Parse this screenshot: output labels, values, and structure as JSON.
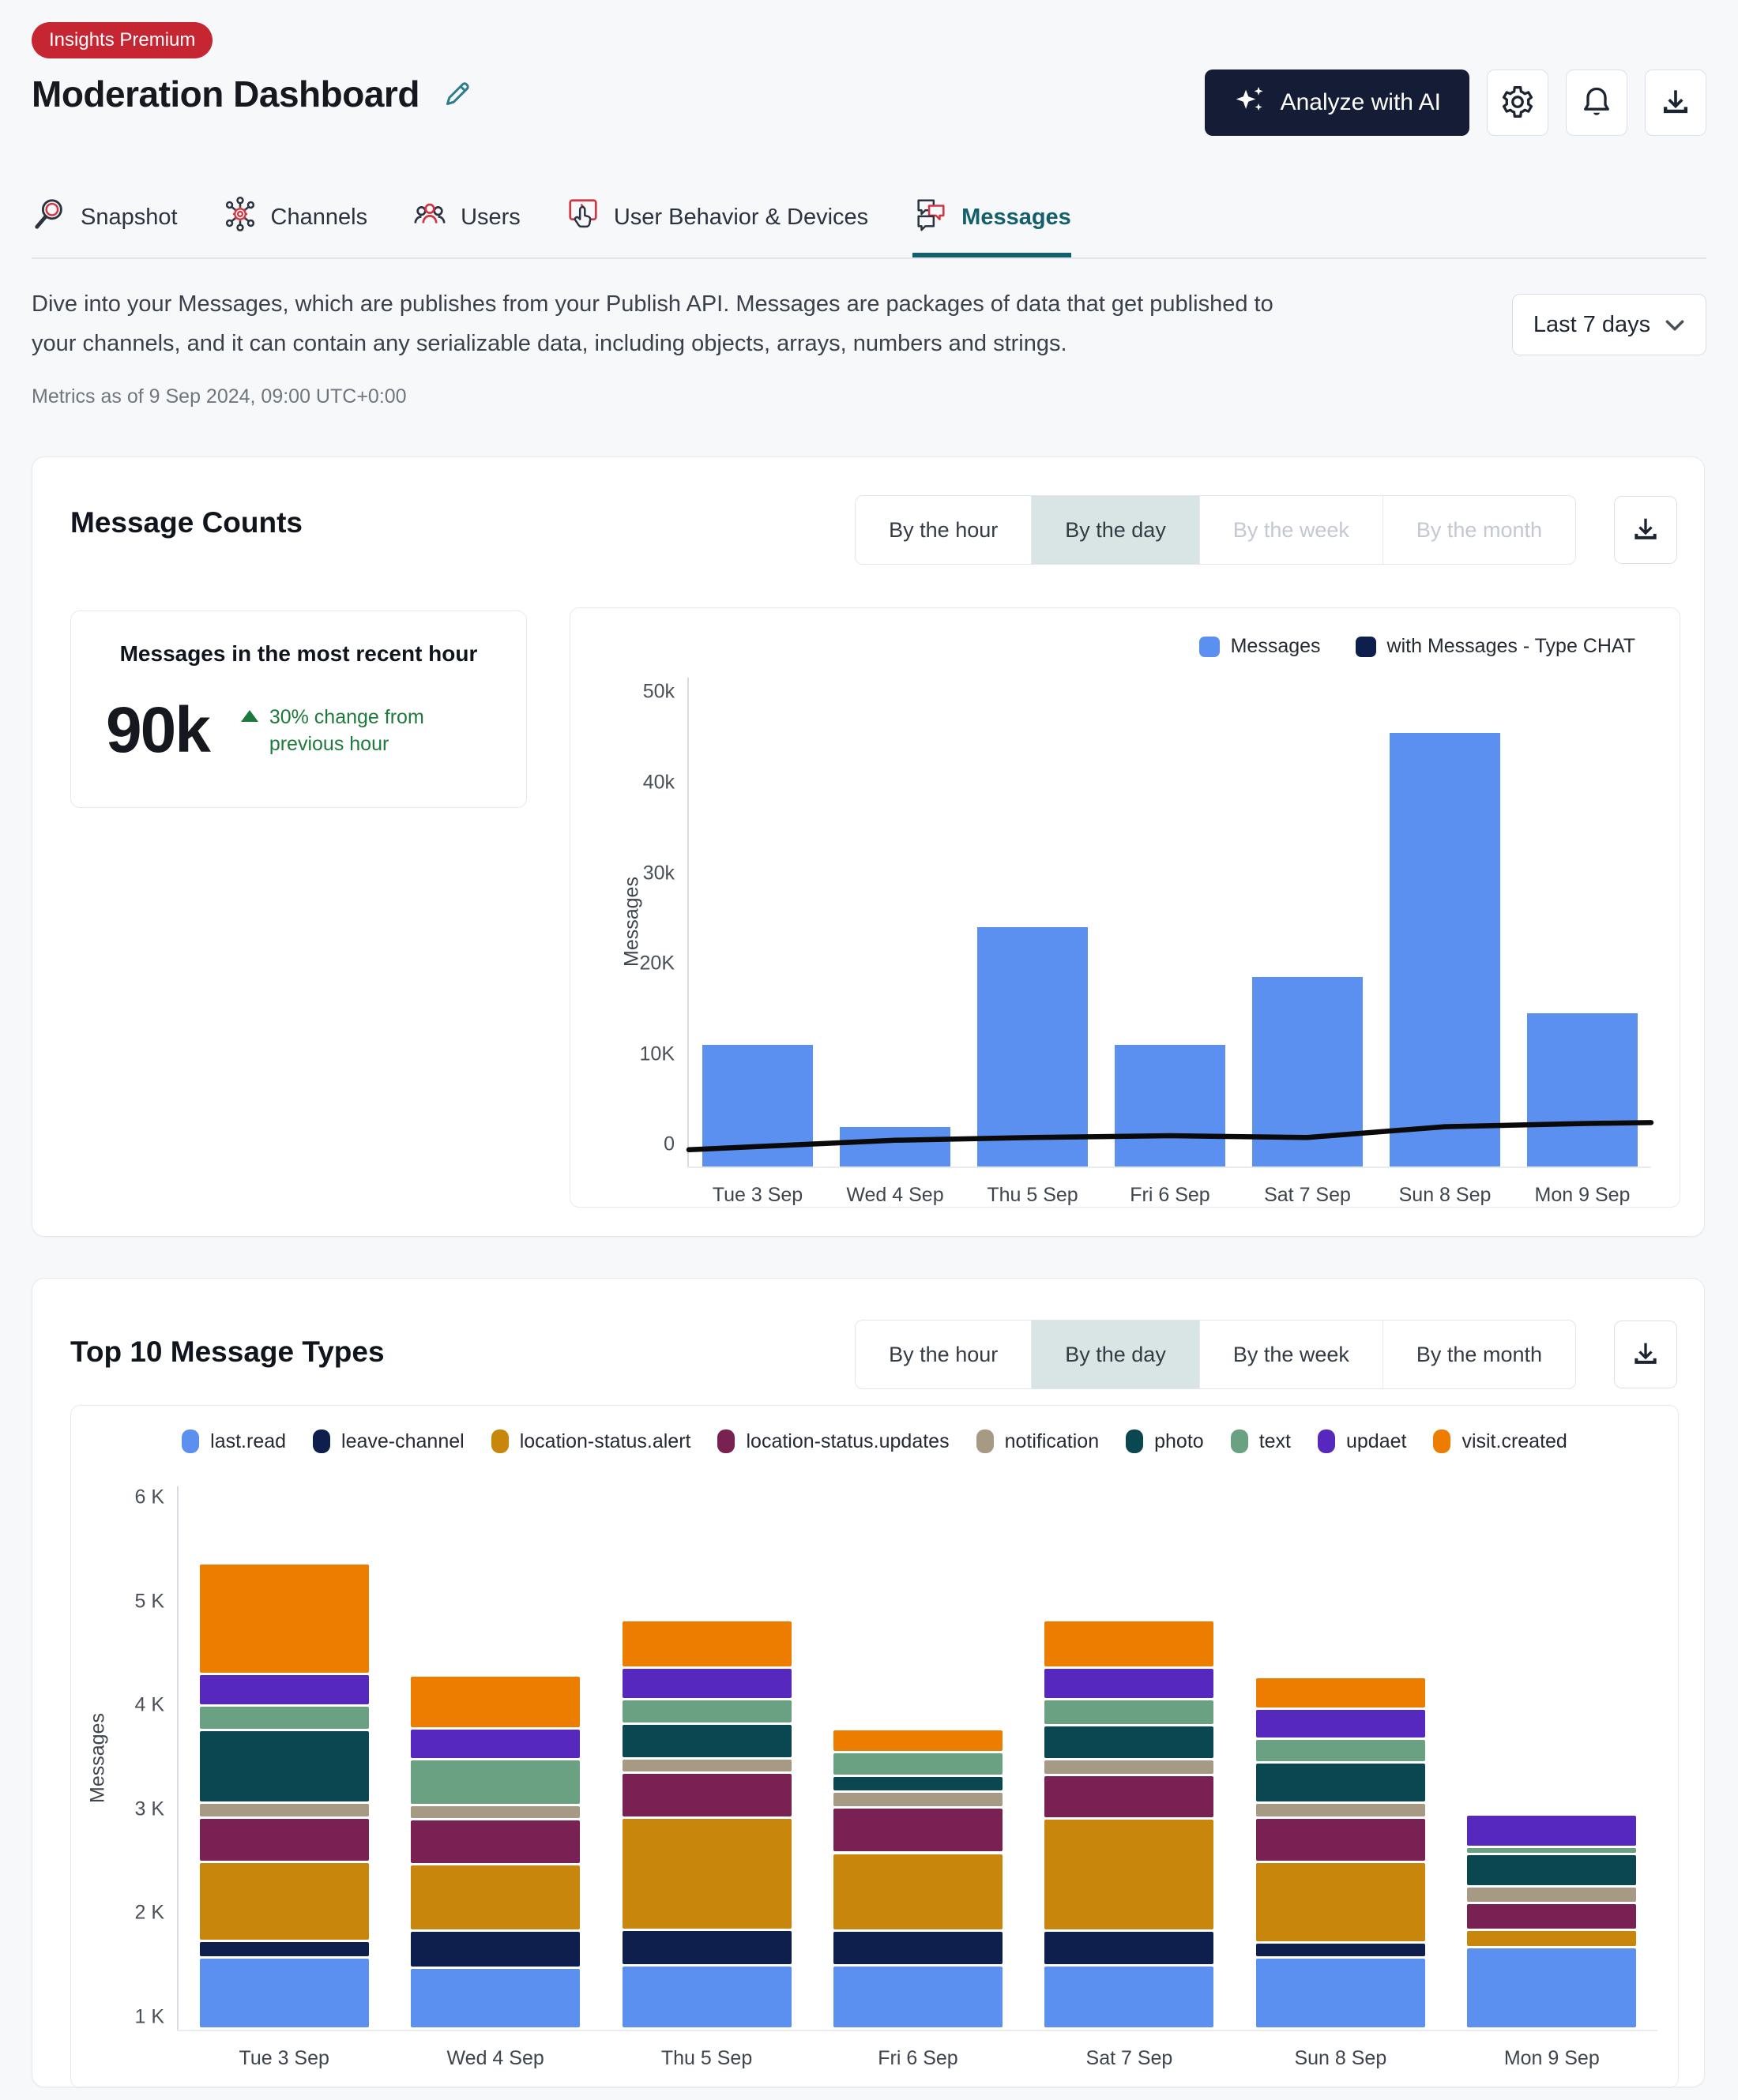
{
  "page": {
    "badge": "Insights Premium",
    "title": "Moderation Dashboard"
  },
  "actions": {
    "analyze_label": "Analyze with AI"
  },
  "tabs": [
    {
      "label": "Snapshot",
      "icon": "search-icon",
      "active": false
    },
    {
      "label": "Channels",
      "icon": "hub-icon",
      "active": false
    },
    {
      "label": "Users",
      "icon": "users-icon",
      "active": false
    },
    {
      "label": "User Behavior & Devices",
      "icon": "behavior-icon",
      "active": false
    },
    {
      "label": "Messages",
      "icon": "messages-icon",
      "active": true
    }
  ],
  "intro": {
    "description": "Dive into your Messages, which are publishes from your Publish API. Messages are packages of data that get published to your channels, and it can contain any serializable data, including objects, arrays, numbers and strings.",
    "range_label": "Last 7 days",
    "metrics_asof": "Metrics as of 9 Sep 2024, 09:00 UTC+0:00"
  },
  "message_counts": {
    "title": "Message Counts",
    "granularity": [
      {
        "label": "By the hour",
        "state": "normal"
      },
      {
        "label": "By the day",
        "state": "selected"
      },
      {
        "label": "By the week",
        "state": "disabled"
      },
      {
        "label": "By the month",
        "state": "disabled"
      }
    ],
    "kpi": {
      "label": "Messages in the most recent hour",
      "value": "90k",
      "delta": "30% change from previous hour"
    },
    "chart_data": {
      "type": "bar+line",
      "unit": "thousands of messages",
      "categories": [
        "Tue 3 Sep",
        "Wed 4 Sep",
        "Thu 5 Sep",
        "Fri 6 Sep",
        "Sat 7 Sep",
        "Sun 8 Sep",
        "Mon 9 Sep"
      ],
      "series": [
        {
          "name": "Messages",
          "kind": "bar",
          "color": "#5B8FF0",
          "values_k": [
            11,
            2,
            24,
            11,
            18.5,
            45.5,
            14.5
          ]
        },
        {
          "name": "with Messages - Type CHAT",
          "kind": "line",
          "color": "#0E1F4E",
          "stroke": "#0A0A0A",
          "values_k": [
            -0.2,
            0.5,
            0.8,
            1.0,
            0.8,
            2.0,
            2.35
          ],
          "edge_start_k": -0.55,
          "edge_end_k": 2.45
        }
      ],
      "ylabel": "Messages",
      "yticks": [
        {
          "label": "0",
          "v": 0
        },
        {
          "label": "10K",
          "v": 10
        },
        {
          "label": "20K",
          "v": 20
        },
        {
          "label": "30k",
          "v": 30
        },
        {
          "label": "40k",
          "v": 40
        },
        {
          "label": "50k",
          "v": 50
        }
      ],
      "ylim_k": [
        -2.4,
        51.6
      ],
      "legend_position": "top-right",
      "grid": false
    }
  },
  "top_types": {
    "title": "Top 10 Message Types",
    "granularity": [
      {
        "label": "By the hour",
        "state": "normal"
      },
      {
        "label": "By the day",
        "state": "selected"
      },
      {
        "label": "By the week",
        "state": "normal"
      },
      {
        "label": "By the month",
        "state": "normal"
      }
    ],
    "chart_data": {
      "type": "stacked-bar",
      "unit": "thousands of messages",
      "categories": [
        "Tue 3 Sep",
        "Wed 4 Sep",
        "Thu 5 Sep",
        "Fri 6 Sep",
        "Sat 7 Sep",
        "Sun 8 Sep",
        "Mon 9 Sep"
      ],
      "ylabel": "Messages",
      "yticks": [
        {
          "label": "1 K",
          "v": 1
        },
        {
          "label": "2 K",
          "v": 2
        },
        {
          "label": "3 K",
          "v": 3
        },
        {
          "label": "4 K",
          "v": 4
        },
        {
          "label": "5 K",
          "v": 5
        },
        {
          "label": "6 K",
          "v": 6
        }
      ],
      "ylim_k": [
        0.878,
        6.11
      ],
      "legend_position": "top-center",
      "grid": false,
      "series": [
        {
          "name": "last.read",
          "color": "#5B8FF0"
        },
        {
          "name": "leave-channel",
          "color": "#0E1F4E"
        },
        {
          "name": "location-status.alert",
          "color": "#C8860D"
        },
        {
          "name": "location-status.updates",
          "color": "#7A2153"
        },
        {
          "name": "notification",
          "color": "#A79A84"
        },
        {
          "name": "photo",
          "color": "#0B4750"
        },
        {
          "name": "text",
          "color": "#6BA183"
        },
        {
          "name": "updaet",
          "color": "#5628BE"
        },
        {
          "name": "visit.created",
          "color": "#EC7D00"
        }
      ],
      "stacks": [
        {
          "category": "Tue 3 Sep",
          "segments": [
            [
              "last.read",
              0.88,
              1.56
            ],
            [
              "leave-channel",
              1.56,
              1.72
            ],
            [
              "location-status.alert",
              1.72,
              2.48
            ],
            [
              "location-status.updates",
              2.48,
              2.91
            ],
            [
              "notification",
              2.91,
              3.05
            ],
            [
              "photo",
              3.05,
              3.75
            ],
            [
              "text",
              3.75,
              3.99
            ],
            [
              "updaet",
              3.99,
              4.29
            ],
            [
              "visit.created",
              4.29,
              5.36
            ]
          ]
        },
        {
          "category": "Wed 4 Sep",
          "segments": [
            [
              "last.read",
              0.88,
              1.46
            ],
            [
              "leave-channel",
              1.46,
              1.82
            ],
            [
              "location-status.alert",
              1.82,
              2.46
            ],
            [
              "location-status.updates",
              2.46,
              2.89
            ],
            [
              "notification",
              2.89,
              3.03
            ],
            [
              "text",
              3.03,
              3.47
            ],
            [
              "updaet",
              3.47,
              3.77
            ],
            [
              "visit.created",
              3.77,
              4.28
            ]
          ]
        },
        {
          "category": "Thu 5 Sep",
          "segments": [
            [
              "last.read",
              0.88,
              1.49
            ],
            [
              "leave-channel",
              1.49,
              1.83
            ],
            [
              "location-status.alert",
              1.83,
              2.91
            ],
            [
              "location-status.updates",
              2.91,
              3.34
            ],
            [
              "notification",
              3.34,
              3.48
            ],
            [
              "photo",
              3.48,
              3.81
            ],
            [
              "text",
              3.81,
              4.05
            ],
            [
              "updaet",
              4.05,
              4.35
            ],
            [
              "visit.created",
              4.35,
              4.81
            ]
          ]
        },
        {
          "category": "Fri 6 Sep",
          "segments": [
            [
              "last.read",
              0.88,
              1.49
            ],
            [
              "leave-channel",
              1.49,
              1.82
            ],
            [
              "location-status.alert",
              1.82,
              2.57
            ],
            [
              "location-status.updates",
              2.57,
              3.01
            ],
            [
              "notification",
              3.01,
              3.16
            ],
            [
              "photo",
              3.16,
              3.31
            ],
            [
              "text",
              3.31,
              3.54
            ],
            [
              "visit.created",
              3.54,
              3.76
            ]
          ]
        },
        {
          "category": "Sat 7 Sep",
          "segments": [
            [
              "last.read",
              0.88,
              1.49
            ],
            [
              "leave-channel",
              1.49,
              1.82
            ],
            [
              "location-status.alert",
              1.82,
              2.9
            ],
            [
              "location-status.updates",
              2.9,
              3.32
            ],
            [
              "notification",
              3.32,
              3.47
            ],
            [
              "photo",
              3.47,
              3.8
            ],
            [
              "text",
              3.8,
              4.05
            ],
            [
              "updaet",
              4.05,
              4.35
            ],
            [
              "visit.created",
              4.35,
              4.81
            ]
          ]
        },
        {
          "category": "Sun 8 Sep",
          "segments": [
            [
              "last.read",
              0.88,
              1.56
            ],
            [
              "leave-channel",
              1.56,
              1.71
            ],
            [
              "location-status.alert",
              1.71,
              2.48
            ],
            [
              "location-status.updates",
              2.48,
              2.91
            ],
            [
              "notification",
              2.91,
              3.05
            ],
            [
              "photo",
              3.05,
              3.44
            ],
            [
              "text",
              3.44,
              3.67
            ],
            [
              "updaet",
              3.67,
              3.96
            ],
            [
              "visit.created",
              3.96,
              4.26
            ]
          ]
        },
        {
          "category": "Mon 9 Sep",
          "segments": [
            [
              "last.read",
              0.88,
              1.66
            ],
            [
              "location-status.alert",
              1.66,
              1.83
            ],
            [
              "location-status.updates",
              1.83,
              2.09
            ],
            [
              "notification",
              2.09,
              2.25
            ],
            [
              "photo",
              2.25,
              2.56
            ],
            [
              "text",
              2.56,
              2.63
            ],
            [
              "updaet",
              2.63,
              2.94
            ]
          ]
        }
      ]
    }
  },
  "colors": {
    "badge_red": "#C62631",
    "accent_teal": "#135F6B",
    "button_navy": "#151C35",
    "positive_green": "#1E7A3C",
    "toggle_selected_bg": "#D8E5E4",
    "bar_blue": "#5B8FF0",
    "line_black": "#0A0A0A"
  }
}
